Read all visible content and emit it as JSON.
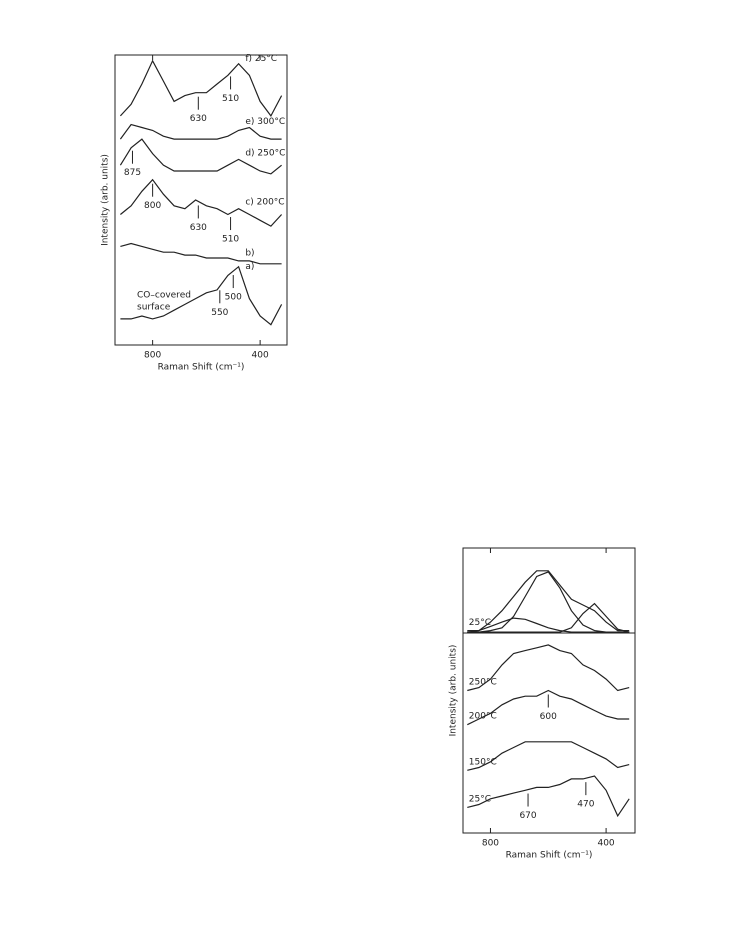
{
  "chart_data": [
    {
      "type": "line",
      "x_label": "Raman Shift (cm⁻¹)",
      "y_label": "Intensity (arb. units)",
      "xlim": [
        940,
        300
      ],
      "xticks": [
        800,
        400
      ],
      "ylim": [
        0,
        100
      ],
      "color": "#222222",
      "x": [
        920,
        880,
        840,
        800,
        760,
        720,
        680,
        640,
        600,
        560,
        520,
        480,
        440,
        400,
        360,
        320
      ],
      "series": [
        {
          "name": "f) 25°C",
          "values": [
            79,
            83,
            90,
            98,
            91,
            84,
            86,
            87,
            87,
            90,
            93,
            97,
            93,
            84,
            79,
            86
          ],
          "peaks": [
            630,
            510
          ]
        },
        {
          "name": "e) 300°C",
          "values": [
            71,
            76,
            75,
            74,
            72,
            71,
            71,
            71,
            71,
            71,
            72,
            74,
            75,
            72,
            71,
            71
          ],
          "peaks": []
        },
        {
          "name": "d) 250°C",
          "values": [
            62,
            68,
            71,
            66,
            62,
            60,
            60,
            60,
            60,
            60,
            62,
            64,
            62,
            60,
            59,
            62
          ],
          "peaks": [
            875
          ]
        },
        {
          "name": "c) 200°C",
          "values": [
            45,
            48,
            53,
            57,
            52,
            48,
            47,
            50,
            48,
            47,
            45,
            47,
            45,
            43,
            41,
            45
          ],
          "peaks": [
            800,
            630,
            510
          ]
        },
        {
          "name": "b)",
          "values": [
            34,
            35,
            34,
            33,
            32,
            32,
            31,
            31,
            30,
            30,
            30,
            29,
            29,
            28,
            28,
            28
          ],
          "peaks": []
        },
        {
          "name": "a)",
          "values": [
            9,
            9,
            10,
            9,
            10,
            12,
            14,
            16,
            18,
            19,
            24,
            27,
            16,
            10,
            7,
            14
          ],
          "peaks": [
            550,
            500
          ]
        }
      ],
      "annotations": [
        "CO–covered",
        "surface"
      ]
    },
    {
      "type": "line",
      "x_label": "Raman Shift (cm⁻¹)",
      "y_label": "Intensity (arb. units)",
      "xlim": [
        895,
        300
      ],
      "xticks": [
        800,
        400
      ],
      "ylim": [
        0,
        100
      ],
      "color": "#222222",
      "x": [
        880,
        840,
        800,
        760,
        720,
        680,
        640,
        600,
        560,
        520,
        480,
        440,
        400,
        360,
        320
      ],
      "series": [
        {
          "name": "25°C",
          "values": [
            71,
            71,
            74,
            78,
            83,
            88,
            92,
            92,
            87,
            82,
            80,
            78,
            74,
            71,
            71
          ],
          "peaks": []
        },
        {
          "values": [
            70.5,
            70.5,
            71,
            72,
            76,
            83,
            90,
            91.6,
            86,
            78,
            73,
            71,
            70.5,
            70.5,
            70.5
          ],
          "peaks": []
        },
        {
          "values": [
            70.5,
            71,
            72.5,
            74,
            75.4,
            75,
            73.5,
            72,
            71,
            70.5,
            70.5,
            70.5,
            70.5,
            70.5,
            70.5
          ],
          "peaks": []
        },
        {
          "values": [
            70.5,
            70.5,
            70.5,
            70.5,
            70.5,
            70.5,
            70.5,
            70.5,
            70.5,
            72,
            77,
            80.5,
            76,
            71.5,
            70.5
          ],
          "peaks": []
        },
        {
          "name": "250°C",
          "values": [
            50,
            51,
            54,
            59,
            63,
            64,
            65,
            66,
            64,
            63,
            59,
            57,
            54,
            50,
            51
          ],
          "peaks": []
        },
        {
          "name": "200°C",
          "values": [
            38,
            40,
            42,
            45,
            47,
            48,
            48,
            50,
            48,
            47,
            45,
            43,
            41,
            40,
            40
          ],
          "peaks": [
            600
          ]
        },
        {
          "name": "150°C",
          "values": [
            22,
            23,
            25,
            28,
            30,
            32,
            32,
            32,
            32,
            32,
            30,
            28,
            26,
            23,
            24
          ],
          "peaks": []
        },
        {
          "name": "25°C",
          "values": [
            9,
            10,
            12,
            13,
            14,
            15,
            16,
            16,
            17,
            19,
            19,
            20,
            15,
            6,
            12
          ],
          "peaks": [
            670,
            470
          ]
        }
      ]
    }
  ]
}
